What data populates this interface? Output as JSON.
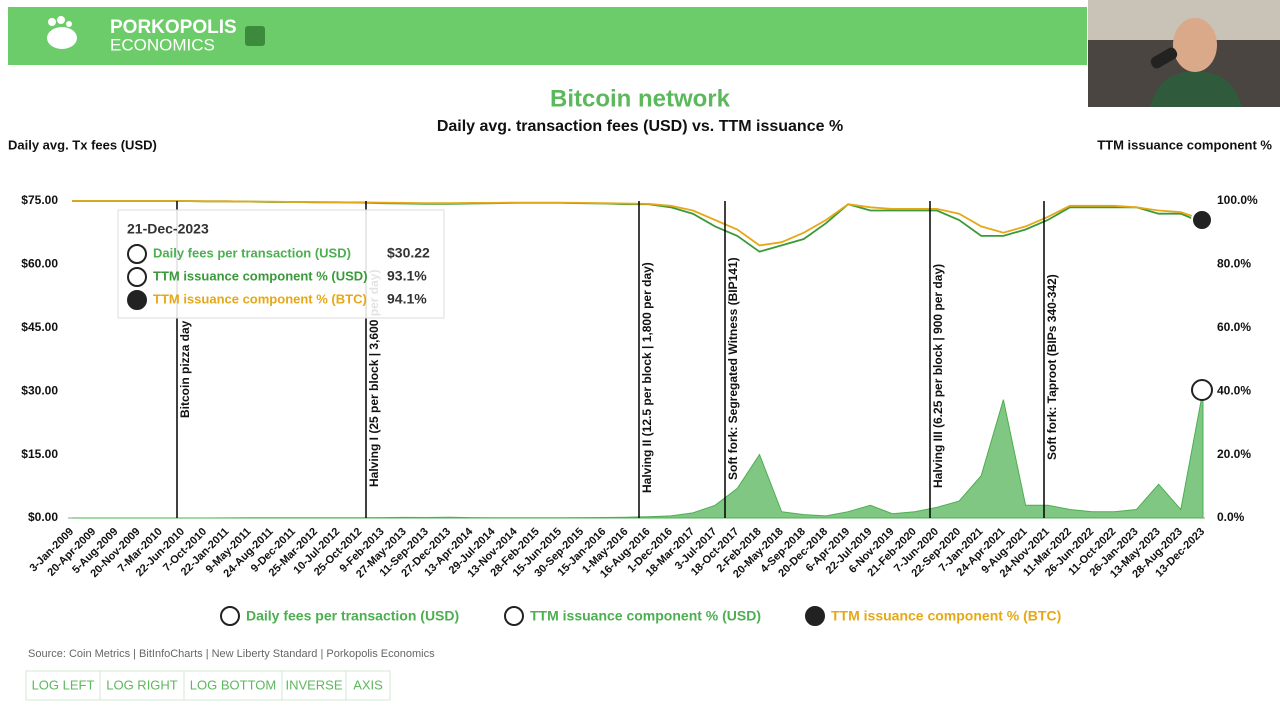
{
  "header": {
    "brand_line1": "PORKOPOLIS",
    "brand_line2": "ECONOMICS"
  },
  "chart_data": {
    "type": "line",
    "title": "Bitcoin network",
    "subtitle": "Daily avg. transaction fees (USD) vs. TTM issuance %",
    "y_label": "Daily avg. Tx fees (USD)",
    "y2_label": "TTM issuance component %",
    "categories": [
      "3-Jan-2009",
      "20-Apr-2009",
      "5-Aug-2009",
      "20-Nov-2009",
      "7-Mar-2010",
      "22-Jun-2010",
      "7-Oct-2010",
      "22-Jan-2011",
      "9-May-2011",
      "24-Aug-2011",
      "9-Dec-2011",
      "25-Mar-2012",
      "10-Jul-2012",
      "25-Oct-2012",
      "9-Feb-2013",
      "27-May-2013",
      "11-Sep-2013",
      "27-Dec-2013",
      "13-Apr-2014",
      "29-Jul-2014",
      "13-Nov-2014",
      "28-Feb-2015",
      "15-Jun-2015",
      "30-Sep-2015",
      "15-Jan-2016",
      "1-May-2016",
      "16-Aug-2016",
      "1-Dec-2016",
      "18-Mar-2017",
      "3-Jul-2017",
      "18-Oct-2017",
      "2-Feb-2018",
      "20-May-2018",
      "4-Sep-2018",
      "20-Dec-2018",
      "6-Apr-2019",
      "22-Jul-2019",
      "6-Nov-2019",
      "21-Feb-2020",
      "7-Jun-2020",
      "22-Sep-2020",
      "7-Jan-2021",
      "24-Apr-2021",
      "9-Aug-2021",
      "24-Nov-2021",
      "11-Mar-2022",
      "26-Jun-2022",
      "11-Oct-2022",
      "26-Jan-2023",
      "13-May-2023",
      "28-Aug-2023",
      "13-Dec-2023"
    ],
    "series": [
      {
        "name": "Daily fees per transaction (USD)",
        "color": "#4caf50",
        "axis": "y",
        "style": "area",
        "values": [
          0,
          0,
          0,
          0,
          0,
          0.01,
          0.01,
          0.02,
          0.05,
          0.05,
          0.04,
          0.05,
          0.06,
          0.08,
          0.1,
          0.15,
          0.12,
          0.2,
          0.1,
          0.08,
          0.06,
          0.06,
          0.08,
          0.1,
          0.12,
          0.2,
          0.3,
          0.5,
          1.2,
          3,
          7,
          15,
          1.5,
          0.8,
          0.5,
          1.5,
          3,
          1,
          1.5,
          2.5,
          4,
          10,
          28,
          3,
          3,
          2,
          1.5,
          1.5,
          2,
          8,
          2,
          30.22
        ]
      },
      {
        "name": "TTM issuance component % (USD)",
        "color": "#3a9a3a",
        "axis": "y2",
        "style": "line",
        "values": [
          100,
          100,
          100,
          100,
          100,
          100,
          99.9,
          99.9,
          99.8,
          99.7,
          99.7,
          99.6,
          99.6,
          99.5,
          99.3,
          99.2,
          99.1,
          99.1,
          99.2,
          99.3,
          99.4,
          99.4,
          99.4,
          99.3,
          99.2,
          99,
          99,
          98,
          96,
          92,
          89,
          84,
          86,
          88,
          93,
          99,
          97,
          97,
          97,
          97,
          94,
          89,
          89,
          91,
          94,
          98,
          98,
          98,
          98,
          96,
          96,
          93.1
        ]
      },
      {
        "name": "TTM issuance component % (BTC)",
        "color": "#e6a817",
        "axis": "y2",
        "style": "line",
        "values": [
          100,
          100,
          100,
          100,
          100,
          100,
          99.9,
          99.9,
          99.8,
          99.8,
          99.7,
          99.7,
          99.6,
          99.6,
          99.5,
          99.4,
          99.3,
          99.3,
          99.4,
          99.4,
          99.5,
          99.5,
          99.5,
          99.4,
          99.3,
          99.2,
          99.1,
          98.5,
          97,
          94,
          91,
          86,
          87,
          90,
          94,
          99,
          98,
          97.5,
          97.5,
          97.5,
          96,
          92,
          90,
          92,
          95,
          98.5,
          98.5,
          98.5,
          98,
          97,
          96.5,
          94.1
        ]
      }
    ],
    "ylim": [
      0,
      75
    ],
    "yticks": [
      {
        "value": 0,
        "label": "$0.00"
      },
      {
        "value": 15,
        "label": "$15.00"
      },
      {
        "value": 30,
        "label": "$30.00"
      },
      {
        "value": 45,
        "label": "$45.00"
      },
      {
        "value": 60,
        "label": "$60.00"
      },
      {
        "value": 75,
        "label": "$75.00"
      }
    ],
    "y2lim": [
      0,
      100
    ],
    "y2ticks": [
      {
        "value": 0,
        "label": "0.0%"
      },
      {
        "value": 20,
        "label": "20.0%"
      },
      {
        "value": 40,
        "label": "40.0%"
      },
      {
        "value": 60,
        "label": "60.0%"
      },
      {
        "value": 80,
        "label": "80.0%"
      },
      {
        "value": 100,
        "label": "100.0%"
      }
    ],
    "annotations": [
      "Bitcoin pizza day",
      "Halving I (25 per block | 3,600 per day)",
      "Halving II (12.5 per block | 1,800 per day)",
      "Soft fork: Segregated Witness (BIP141)",
      "Halving III (6.25 per block | 900 per day)",
      "Soft fork: Taproot (BIPs 340-342)"
    ],
    "legend": "bottom"
  },
  "tooltip": {
    "date": "21-Dec-2023",
    "rows": [
      {
        "label": "Daily fees per transaction (USD)",
        "value": "$30.22"
      },
      {
        "label": "TTM issuance component % (USD)",
        "value": "93.1%"
      },
      {
        "label": "TTM issuance component % (BTC)",
        "value": "94.1%"
      }
    ]
  },
  "source": "Source: Coin Metrics | BitInfoCharts | New Liberty Standard | Porkopolis Economics",
  "buttons": [
    "LOG LEFT",
    "LOG RIGHT",
    "LOG BOTTOM",
    "INVERSE",
    "AXIS"
  ]
}
